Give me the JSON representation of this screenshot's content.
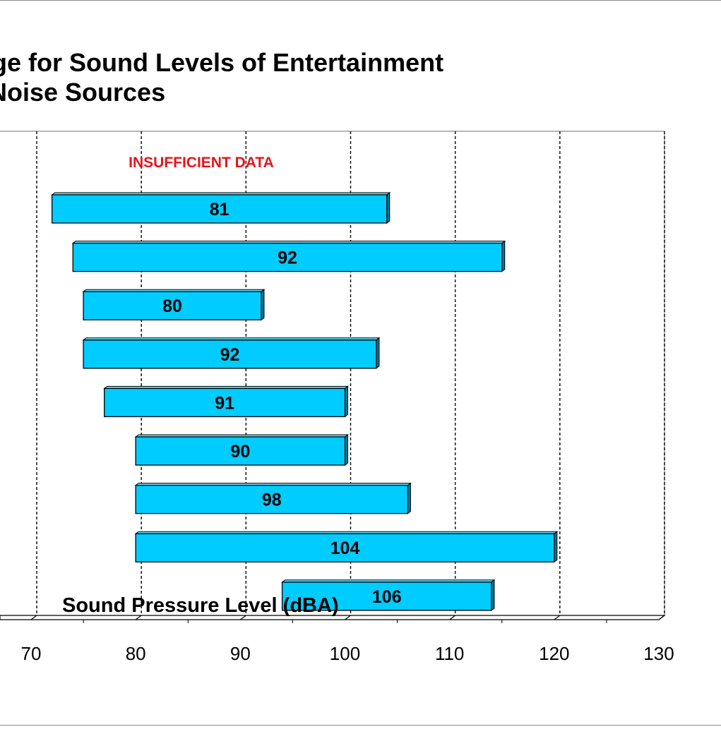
{
  "chart_data": {
    "type": "bar",
    "orientation": "horizontal",
    "style": "floating-range",
    "title": [
      "ge for Sound Levels of Entertainment",
      "Noise Sources"
    ],
    "xlabel": "Sound Pressure Level (dBA)",
    "ylabel": "",
    "xlim": [
      70,
      130
    ],
    "x_ticks": [
      "70",
      "80",
      "90",
      "100",
      "110",
      "120",
      "130"
    ],
    "grid": "vertical-dashed",
    "annotation": {
      "text": "INSUFFICIENT DATA",
      "color": "#e8141b"
    },
    "bar_color": "#00ccff",
    "ranges": [
      {
        "min": 72,
        "max": 104,
        "label": "81"
      },
      {
        "min": 74,
        "max": 115,
        "label": "92"
      },
      {
        "min": 75,
        "max": 92,
        "label": "80"
      },
      {
        "min": 75,
        "max": 103,
        "label": "92"
      },
      {
        "min": 77,
        "max": 100,
        "label": "91"
      },
      {
        "min": 80,
        "max": 100,
        "label": "90"
      },
      {
        "min": 80,
        "max": 106,
        "label": "98"
      },
      {
        "min": 80,
        "max": 120,
        "label": "104"
      },
      {
        "min": 94,
        "max": 114,
        "label": "106"
      }
    ]
  }
}
